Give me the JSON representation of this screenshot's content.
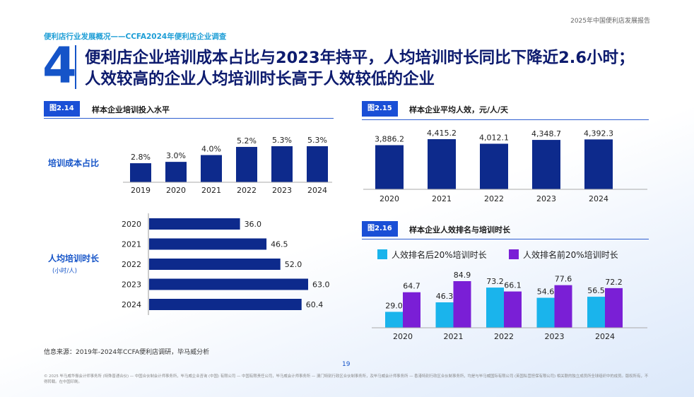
{
  "header": {
    "report_title": "2025年中国便利店发展报告",
    "section_label": "便利店行业发展概况——CCFA2024年便利店企业调查",
    "section_number": "4",
    "headline_line1": "便利店企业培训成本占比与2023年持平，人均培训时长同比下降近2.6小时；",
    "headline_line2": "人效较高的企业人均培训时长高于人效较低的企业"
  },
  "figures": {
    "fig214": {
      "tag": "图2.14",
      "title": "样本企业培训投入水平"
    },
    "fig215": {
      "tag": "图2.15",
      "title": "样本企业平均人效，元/人/天"
    },
    "fig216": {
      "tag": "图2.16",
      "title": "样本企业人效排名与培训时长"
    }
  },
  "labels": {
    "cost_ratio": "培训成本占比",
    "hours": "人均培训时长",
    "hours_unit": "(小时/人)"
  },
  "colors": {
    "navy": "#0d2a8c",
    "cyan": "#1ab4ec",
    "purple": "#7a1fd6",
    "accent": "#1554c8"
  },
  "chart_data": [
    {
      "id": "training-cost-ratio",
      "type": "bar",
      "title": "培训成本占比",
      "categories": [
        "2019",
        "2020",
        "2021",
        "2022",
        "2023",
        "2024"
      ],
      "values": [
        2.8,
        3.0,
        4.0,
        5.2,
        5.3,
        5.3
      ],
      "value_labels": [
        "2.8%",
        "3.0%",
        "4.0%",
        "5.2%",
        "5.3%",
        "5.3%"
      ],
      "ylim": [
        0,
        5.3
      ]
    },
    {
      "id": "training-hours",
      "type": "bar",
      "orientation": "horizontal",
      "title": "人均培训时长",
      "categories": [
        "2020",
        "2021",
        "2022",
        "2023",
        "2024"
      ],
      "values": [
        36.0,
        46.5,
        52.0,
        63.0,
        60.4
      ],
      "value_labels": [
        "36.0",
        "46.5",
        "52.0",
        "63.0",
        "60.4"
      ],
      "xlim": [
        0,
        63
      ]
    },
    {
      "id": "avg-efficiency",
      "type": "bar",
      "title": "样本企业平均人效，元/人/天",
      "categories": [
        "2020",
        "2021",
        "2022",
        "2023",
        "2024"
      ],
      "values": [
        3886.2,
        4415.2,
        4012.1,
        4348.7,
        4392.3
      ],
      "value_labels": [
        "3,886.2",
        "4,415.2",
        "4,012.1",
        "4,348.7",
        "4,392.3"
      ],
      "ylim": [
        0,
        4415.2
      ]
    },
    {
      "id": "efficiency-rank-hours",
      "type": "bar",
      "title": "样本企业人效排名与培训时长",
      "categories": [
        "2020",
        "2021",
        "2022",
        "2023",
        "2024"
      ],
      "series": [
        {
          "name": "人效排名后20%培训时长",
          "values": [
            29.0,
            46.3,
            73.2,
            54.6,
            56.5
          ],
          "value_labels": [
            "29.0",
            "46.3",
            "73.2",
            "54.6",
            "56.5"
          ]
        },
        {
          "name": "人效排名前20%培训时长",
          "values": [
            64.7,
            84.9,
            66.1,
            77.6,
            72.2
          ],
          "value_labels": [
            "64.7",
            "84.9",
            "66.1",
            "77.6",
            "72.2"
          ]
        }
      ],
      "ylim": [
        0,
        84.9
      ]
    }
  ],
  "footer": {
    "source": "信息来源：2019年-2024年CCFA便利店调研，毕马威分析",
    "page_number": "19",
    "copyright": "© 2025 毕马威华振会计师事务所 (特殊普通合伙) — 中国合伙制会计师事务所，毕马威企业咨询 (中国) 有限公司 — 中国有限责任公司，毕马威会计师事务所 — 澳门特别行政区合伙制事务所，及毕马威会计师事务所 — 香港特别行政区合伙制事务所，均是与毕马威国际有限公司 (英国私营担保有限公司) 相关联的独立成员所全球组织中的成员。版权所有，不得转载。在中国印刷。"
  }
}
